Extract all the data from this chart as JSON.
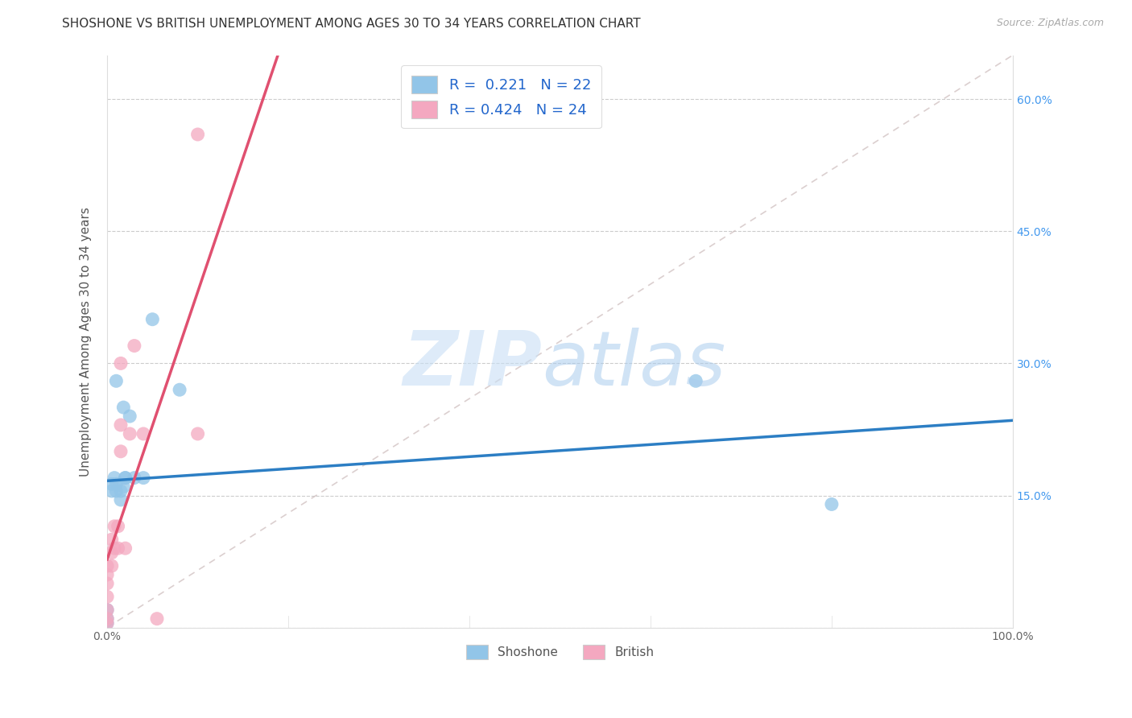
{
  "title": "SHOSHONE VS BRITISH UNEMPLOYMENT AMONG AGES 30 TO 34 YEARS CORRELATION CHART",
  "source": "Source: ZipAtlas.com",
  "ylabel": "Unemployment Among Ages 30 to 34 years",
  "xlim": [
    0,
    1.0
  ],
  "ylim": [
    0.0,
    0.65
  ],
  "xticks": [
    0.0,
    0.2,
    0.4,
    0.6,
    0.8,
    1.0
  ],
  "ytick_positions": [
    0.0,
    0.15,
    0.3,
    0.45,
    0.6
  ],
  "ytick_labels": [
    "",
    "15.0%",
    "30.0%",
    "45.0%",
    "60.0%"
  ],
  "shoshone_color": "#92C5E8",
  "british_color": "#F4A8C0",
  "shoshone_line_color": "#2C7EC4",
  "british_line_color": "#E05070",
  "shoshone_R": 0.221,
  "shoshone_N": 22,
  "british_R": 0.424,
  "british_N": 24,
  "shoshone_x": [
    0.0,
    0.0,
    0.0,
    0.005,
    0.005,
    0.008,
    0.01,
    0.01,
    0.01,
    0.015,
    0.015,
    0.018,
    0.018,
    0.02,
    0.02,
    0.025,
    0.03,
    0.04,
    0.05,
    0.08,
    0.65,
    0.8
  ],
  "shoshone_y": [
    0.005,
    0.01,
    0.02,
    0.155,
    0.163,
    0.17,
    0.155,
    0.163,
    0.28,
    0.145,
    0.155,
    0.16,
    0.25,
    0.17,
    0.17,
    0.24,
    0.17,
    0.17,
    0.35,
    0.27,
    0.28,
    0.14
  ],
  "british_x": [
    0.0,
    0.0,
    0.0,
    0.0,
    0.0,
    0.0,
    0.0,
    0.005,
    0.005,
    0.005,
    0.008,
    0.008,
    0.012,
    0.012,
    0.015,
    0.015,
    0.015,
    0.02,
    0.025,
    0.03,
    0.04,
    0.055,
    0.1,
    0.1
  ],
  "british_y": [
    0.005,
    0.01,
    0.02,
    0.035,
    0.05,
    0.06,
    0.07,
    0.07,
    0.085,
    0.1,
    0.09,
    0.115,
    0.09,
    0.115,
    0.2,
    0.23,
    0.3,
    0.09,
    0.22,
    0.32,
    0.22,
    0.01,
    0.56,
    0.22
  ],
  "shoshone_line_x": [
    0.0,
    1.0
  ],
  "shoshone_line_y": [
    0.168,
    0.27
  ],
  "british_line_x": [
    0.0,
    0.055
  ],
  "british_line_y": [
    0.05,
    0.32
  ],
  "diag_line_x": [
    0.05,
    1.0
  ],
  "diag_line_y": [
    0.05,
    0.65
  ],
  "grid_color": "#CCCCCC",
  "background_color": "#FFFFFF",
  "legend_fontsize": 13,
  "title_fontsize": 11,
  "axis_label_fontsize": 11
}
